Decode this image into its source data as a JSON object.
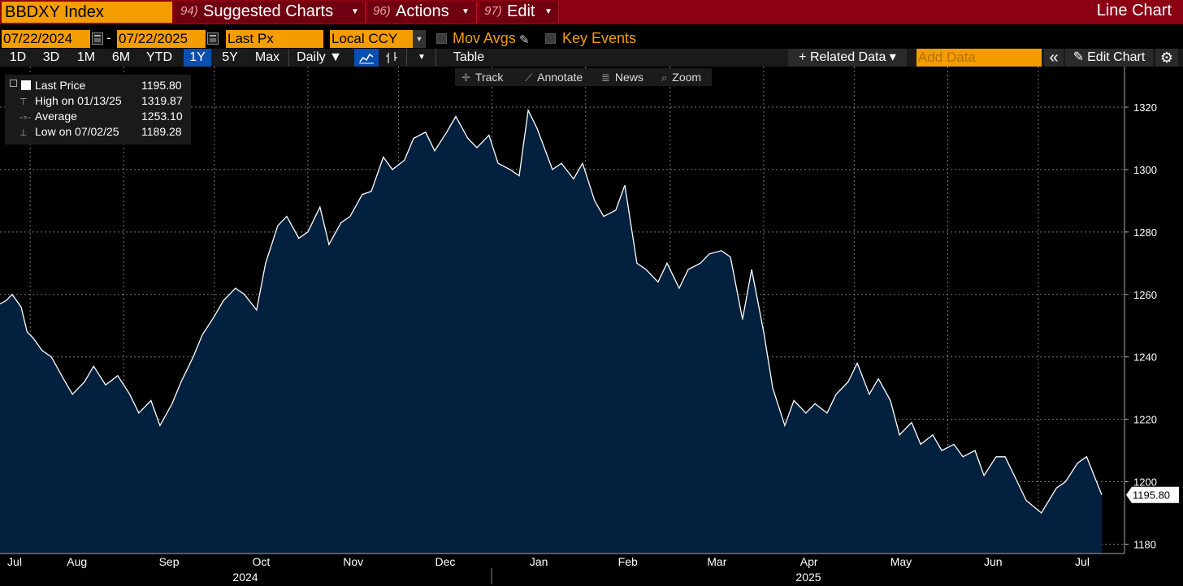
{
  "header": {
    "ticker": "BBDXY Index",
    "menus": [
      {
        "num": "94)",
        "label": "Suggested Charts"
      },
      {
        "num": "96)",
        "label": "Actions"
      },
      {
        "num": "97)",
        "label": "Edit"
      }
    ],
    "view_title": "Line Chart"
  },
  "controls": {
    "start_date": "07/22/2024",
    "end_date": "07/22/2025",
    "date_separator": "-",
    "field": "Last Px",
    "currency": "Local CCY",
    "mov_avgs": "Mov Avgs",
    "key_events": "Key Events"
  },
  "toolbar": {
    "ranges": [
      "1D",
      "3D",
      "1M",
      "6M",
      "YTD",
      "1Y",
      "5Y",
      "Max"
    ],
    "active_range": "1Y",
    "frequency": "Daily ▼",
    "table": "Table",
    "related_data": "+ Related Data ▾",
    "add_data_placeholder": "Add Data",
    "collapse": "«",
    "edit_chart": "Edit Chart",
    "settings_icon": "⚙"
  },
  "tools": [
    "Track",
    "Annotate",
    "News",
    "Zoom"
  ],
  "legend": {
    "rows": [
      {
        "label": "Last Price",
        "value": "1195.80"
      },
      {
        "label": "High on 01/13/25",
        "value": "1319.87"
      },
      {
        "label": "Average",
        "value": "1253.10"
      },
      {
        "label": "Low on 07/02/25",
        "value": "1189.28"
      }
    ]
  },
  "colors": {
    "area_fill": "#03203f",
    "line": "#ffffff",
    "accent_orange": "#f39d00",
    "header_red": "#8b0012",
    "active_blue": "#0a4fb0"
  },
  "chart_data": {
    "type": "area",
    "y_ticks": [
      1180,
      1200,
      1220,
      1240,
      1260,
      1280,
      1300,
      1320
    ],
    "ylim": [
      1177,
      1333
    ],
    "x_month_labels": [
      "Jul",
      "Aug",
      "Sep",
      "Oct",
      "Nov",
      "Dec",
      "Jan",
      "Feb",
      "Mar",
      "Apr",
      "May",
      "Jun",
      "Jul"
    ],
    "x_year_labels": [
      "2024",
      "2025"
    ],
    "last_value_label": "1195.80",
    "grid": true,
    "series": [
      {
        "x": [
          "2024-07-22",
          "2024-07-24",
          "2024-07-26",
          "2024-07-29",
          "2024-07-31",
          "2024-08-02",
          "2024-08-05",
          "2024-08-08",
          "2024-08-12",
          "2024-08-15",
          "2024-08-19",
          "2024-08-22",
          "2024-08-26",
          "2024-08-30",
          "2024-09-03",
          "2024-09-06",
          "2024-09-10",
          "2024-09-13",
          "2024-09-17",
          "2024-09-20",
          "2024-09-24",
          "2024-09-27",
          "2024-10-01",
          "2024-10-04",
          "2024-10-08",
          "2024-10-11",
          "2024-10-15",
          "2024-10-18",
          "2024-10-22",
          "2024-10-25",
          "2024-10-29",
          "2024-11-01",
          "2024-11-05",
          "2024-11-08",
          "2024-11-12",
          "2024-11-15",
          "2024-11-19",
          "2024-11-22",
          "2024-11-26",
          "2024-11-29",
          "2024-12-03",
          "2024-12-06",
          "2024-12-10",
          "2024-12-13",
          "2024-12-17",
          "2024-12-20",
          "2024-12-24",
          "2024-12-27",
          "2024-12-31",
          "2025-01-03",
          "2025-01-07",
          "2025-01-10",
          "2025-01-13",
          "2025-01-16",
          "2025-01-21",
          "2025-01-24",
          "2025-01-28",
          "2025-01-31",
          "2025-02-04",
          "2025-02-07",
          "2025-02-11",
          "2025-02-14",
          "2025-02-18",
          "2025-02-21",
          "2025-02-25",
          "2025-02-28",
          "2025-03-04",
          "2025-03-07",
          "2025-03-11",
          "2025-03-14",
          "2025-03-18",
          "2025-03-21",
          "2025-03-25",
          "2025-03-28",
          "2025-04-01",
          "2025-04-04",
          "2025-04-08",
          "2025-04-11",
          "2025-04-15",
          "2025-04-18",
          "2025-04-22",
          "2025-04-25",
          "2025-04-29",
          "2025-05-02",
          "2025-05-06",
          "2025-05-09",
          "2025-05-13",
          "2025-05-16",
          "2025-05-20",
          "2025-05-23",
          "2025-05-27",
          "2025-05-30",
          "2025-06-03",
          "2025-06-06",
          "2025-06-10",
          "2025-06-13",
          "2025-06-17",
          "2025-06-20",
          "2025-06-24",
          "2025-06-27",
          "2025-07-02",
          "2025-07-07",
          "2025-07-10",
          "2025-07-14",
          "2025-07-17",
          "2025-07-22"
        ],
        "y": [
          1257,
          1258,
          1260,
          1256,
          1248,
          1246,
          1242,
          1240,
          1233,
          1228,
          1232,
          1237,
          1231,
          1234,
          1228,
          1222,
          1226,
          1218,
          1225,
          1232,
          1240,
          1247,
          1253,
          1258,
          1262,
          1260,
          1255,
          1270,
          1282,
          1285,
          1278,
          1280,
          1288,
          1276,
          1283,
          1285,
          1292,
          1293,
          1304,
          1300,
          1303,
          1310,
          1312,
          1306,
          1312,
          1317,
          1310,
          1307,
          1311,
          1302,
          1300,
          1298,
          1319,
          1313,
          1300,
          1302,
          1297,
          1302,
          1290,
          1285,
          1287,
          1295,
          1270,
          1268,
          1264,
          1270,
          1262,
          1268,
          1270,
          1273,
          1274,
          1272,
          1252,
          1268,
          1248,
          1230,
          1218,
          1226,
          1222,
          1225,
          1222,
          1228,
          1232,
          1238,
          1228,
          1233,
          1226,
          1215,
          1219,
          1212,
          1215,
          1210,
          1212,
          1208,
          1210,
          1202,
          1208,
          1208,
          1200,
          1194,
          1190,
          1198,
          1200,
          1206,
          1208,
          1195.8
        ]
      }
    ]
  }
}
